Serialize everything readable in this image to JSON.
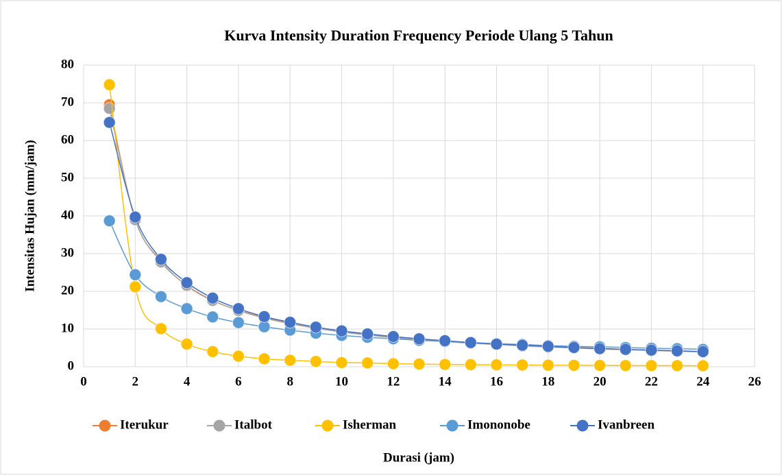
{
  "chart_data": {
    "type": "line",
    "title": "Kurva Intensity Duration Frequency Periode Ulang 5 Tahun",
    "x_label": "Durasi (jam)",
    "y_label": "Intensitas Hujan (mm/jam)",
    "x": [
      1,
      2,
      3,
      4,
      5,
      6,
      7,
      8,
      9,
      10,
      11,
      12,
      13,
      14,
      15,
      16,
      17,
      18,
      19,
      20,
      21,
      22,
      23,
      24
    ],
    "series": [
      {
        "name": "Iterukur",
        "color": "#ed7d31",
        "values": [
          69.5,
          39,
          28,
          21.5,
          17.5,
          15,
          13,
          11.5,
          10.2,
          9.3,
          8.5,
          7.8,
          7.3,
          6.8,
          6.3,
          6.0,
          5.7,
          5.4,
          5.1,
          4.9,
          4.6,
          4.4,
          4.2,
          4.0
        ]
      },
      {
        "name": "Italbot",
        "color": "#a5a5a5",
        "values": [
          68.5,
          39,
          27.8,
          21.6,
          17.6,
          14.9,
          12.9,
          11.4,
          10.2,
          9.2,
          8.4,
          7.7,
          7.2,
          6.7,
          6.2,
          5.9,
          5.5,
          5.2,
          5.0,
          4.7,
          4.5,
          4.3,
          4.1,
          3.9
        ]
      },
      {
        "name": "Isherman",
        "color": "#ffc000",
        "values": [
          74.8,
          21.2,
          10.1,
          6.0,
          4.0,
          2.8,
          2.1,
          1.7,
          1.4,
          1.1,
          1.0,
          0.8,
          0.7,
          0.6,
          0.55,
          0.5,
          0.45,
          0.4,
          0.37,
          0.34,
          0.31,
          0.29,
          0.27,
          0.25
        ]
      },
      {
        "name": "Imononobe",
        "color": "#5b9bd5",
        "values": [
          38.7,
          24.4,
          18.6,
          15.4,
          13.2,
          11.7,
          10.6,
          9.7,
          8.9,
          8.3,
          7.8,
          7.4,
          7.0,
          6.7,
          6.4,
          6.1,
          5.9,
          5.6,
          5.4,
          5.3,
          5.1,
          4.9,
          4.8,
          4.6
        ]
      },
      {
        "name": "Ivanbreen",
        "color": "#4472c4",
        "values": [
          64.8,
          39.7,
          28.5,
          22.3,
          18.2,
          15.4,
          13.3,
          11.8,
          10.5,
          9.5,
          8.7,
          8.0,
          7.4,
          6.9,
          6.4,
          6.0,
          5.7,
          5.4,
          5.1,
          4.8,
          4.6,
          4.4,
          4.2,
          4.0
        ]
      }
    ],
    "xlim": [
      0,
      26
    ],
    "xticks": [
      0,
      2,
      4,
      6,
      8,
      10,
      12,
      14,
      16,
      18,
      20,
      22,
      24,
      26
    ],
    "ylim": [
      0,
      80
    ],
    "yticks": [
      0,
      10,
      20,
      30,
      40,
      50,
      60,
      70,
      80
    ],
    "grid": true,
    "legend": "bottom",
    "smooth": true
  }
}
